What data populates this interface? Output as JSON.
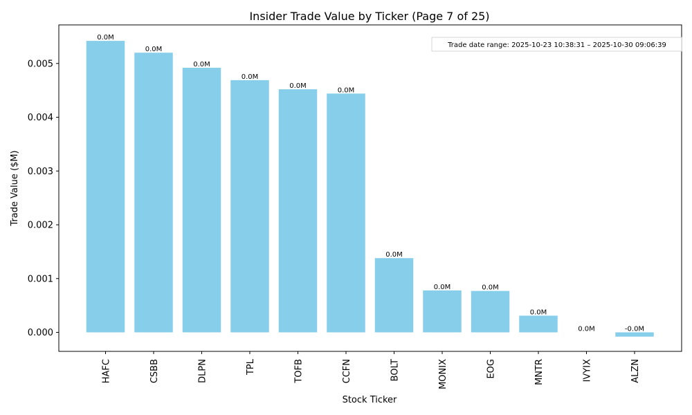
{
  "chart_data": {
    "type": "bar",
    "title": "Insider Trade Value by Ticker (Page 7 of 25)",
    "xlabel": "Stock Ticker",
    "ylabel": "Trade Value ($M)",
    "categories": [
      "HAFC",
      "CSBB",
      "DLPN",
      "TPL",
      "TOFB",
      "CCFN",
      "BOLT",
      "MONIX",
      "EOG",
      "MNTR",
      "IVYIX",
      "ALZN"
    ],
    "values": [
      0.00542,
      0.0052,
      0.00492,
      0.00469,
      0.00452,
      0.00444,
      0.00138,
      0.00078,
      0.00077,
      0.00031,
      0.0,
      -8e-05
    ],
    "data_labels": [
      "0.0M",
      "0.0M",
      "0.0M",
      "0.0M",
      "0.0M",
      "0.0M",
      "0.0M",
      "0.0M",
      "0.0M",
      "0.0M",
      "0.0M",
      "-0.0M"
    ],
    "yticks": [
      0.0,
      0.001,
      0.002,
      0.003,
      0.004,
      0.005
    ],
    "ytick_labels": [
      "0.000",
      "0.001",
      "0.002",
      "0.003",
      "0.004",
      "0.005"
    ],
    "ylim": [
      -0.000355,
      0.00571
    ],
    "grid": false,
    "bar_color": "#87CEEB",
    "annotation": "Trade date range: 2025-10-23 10:38:31 – 2025-10-30 09:06:39"
  }
}
